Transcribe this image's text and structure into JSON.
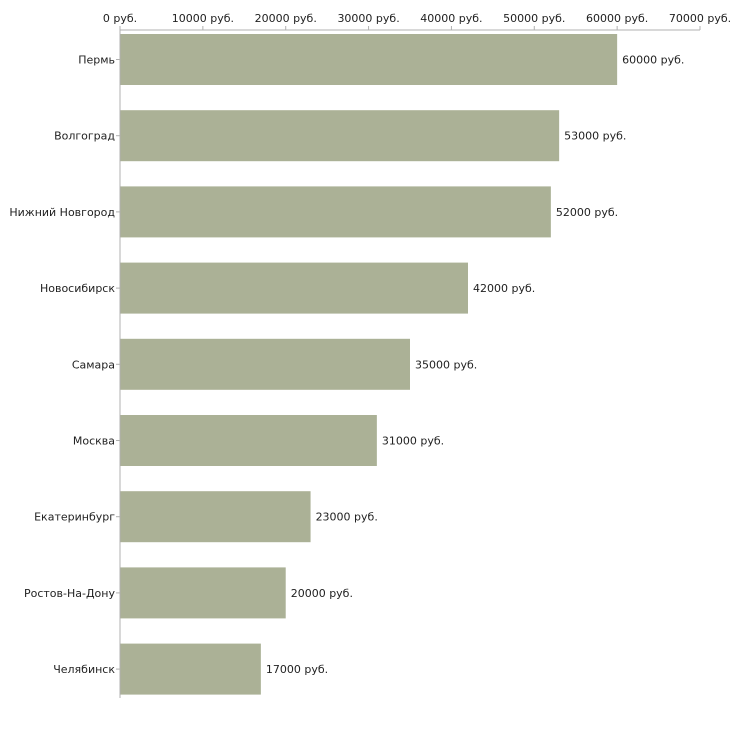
{
  "chart_data": {
    "type": "bar",
    "orientation": "horizontal",
    "categories": [
      "Пермь",
      "Волгоград",
      "Нижний Новгород",
      "Новосибирск",
      "Самара",
      "Москва",
      "Екатеринбург",
      "Ростов-На-Дону",
      "Челябинск"
    ],
    "values": [
      60000,
      53000,
      52000,
      42000,
      35000,
      31000,
      23000,
      20000,
      17000
    ],
    "value_labels": [
      "60000 руб.",
      "53000 руб.",
      "52000 руб.",
      "42000 руб.",
      "35000 руб.",
      "31000 руб.",
      "23000 руб.",
      "20000 руб.",
      "17000 руб."
    ],
    "x_ticks": [
      0,
      10000,
      20000,
      30000,
      40000,
      50000,
      60000,
      70000
    ],
    "x_tick_labels": [
      "0 руб.",
      "10000 руб.",
      "20000 руб.",
      "30000 руб.",
      "40000 руб.",
      "50000 руб.",
      "60000 руб.",
      "70000 руб."
    ],
    "xlim": [
      0,
      70000
    ],
    "axis_position": "top",
    "grid": false,
    "title": "",
    "xlabel": "",
    "ylabel": "",
    "bar_color": "#abb196",
    "axis_color": "#b0b0b0"
  }
}
